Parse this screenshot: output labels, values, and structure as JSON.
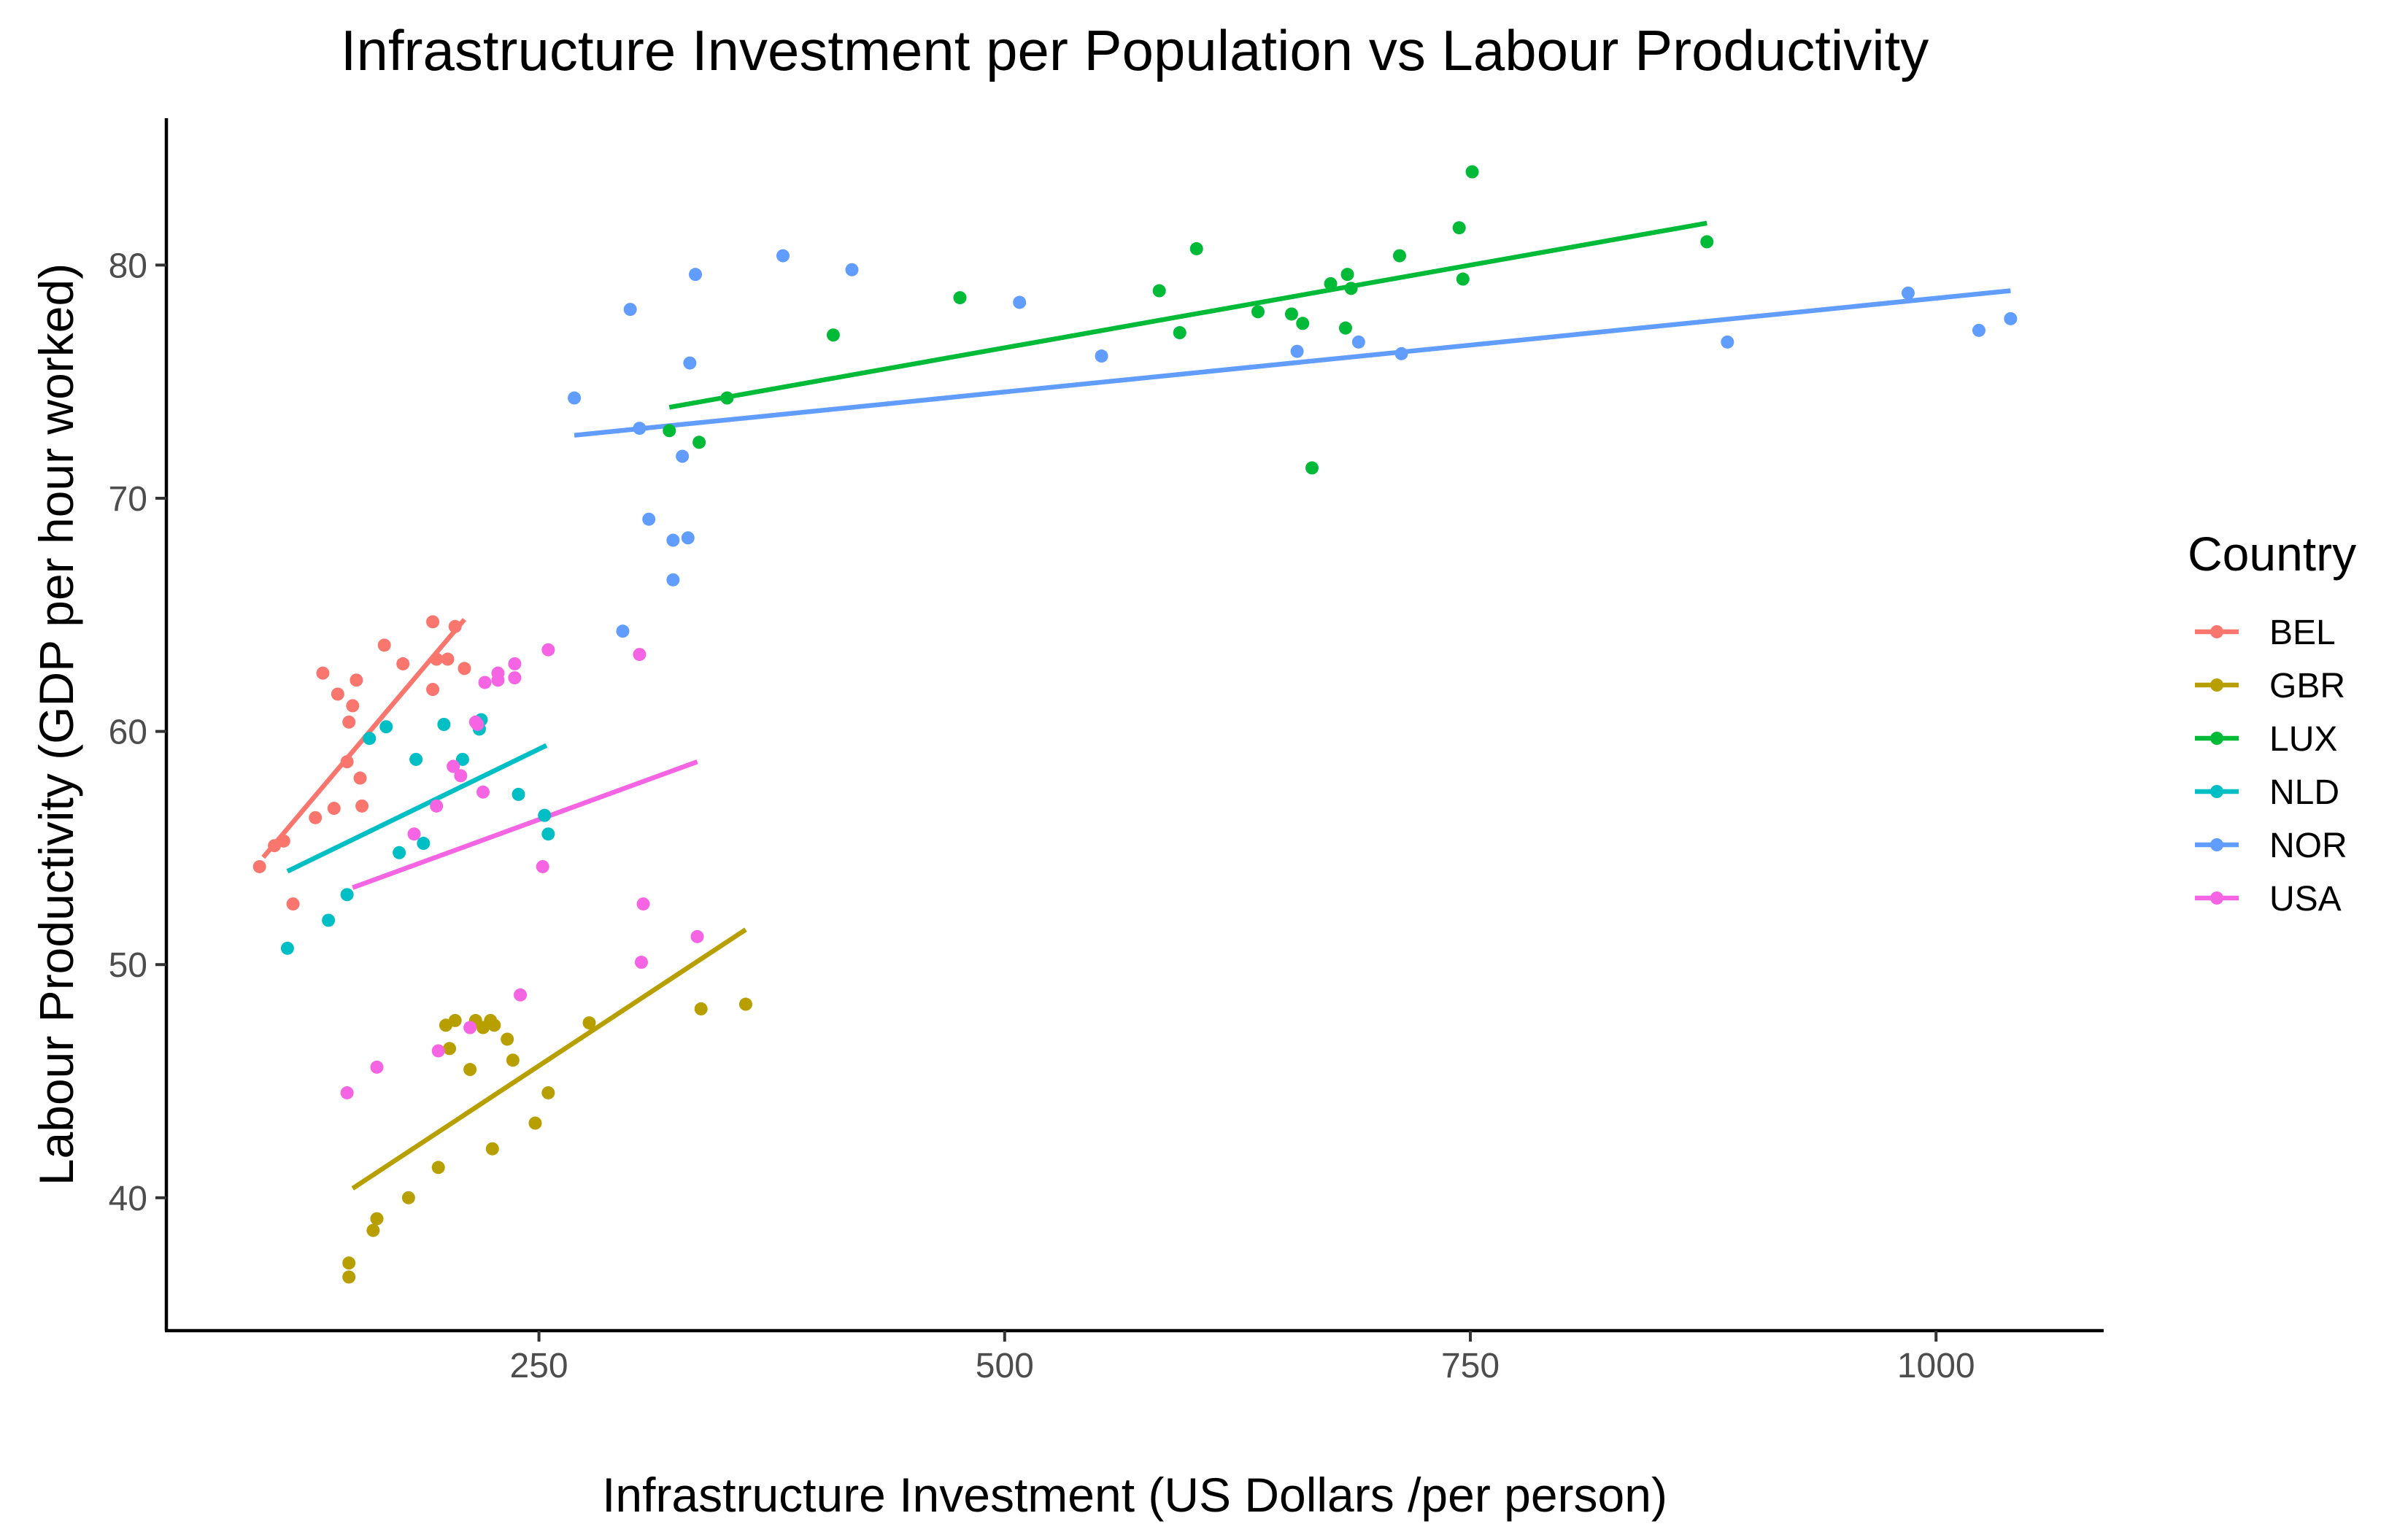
{
  "chart_data": {
    "type": "scatter",
    "title": "Infrastructure Investment per Population vs Labour Productivity",
    "xlabel": "Infrastructure Investment (US Dollars /per person)",
    "ylabel": "Labour Productivity (GDP per hour worked)",
    "xlim": [
      50,
      1090
    ],
    "ylim": [
      34.3,
      86.3
    ],
    "xticks": [
      250,
      500,
      750,
      1000
    ],
    "yticks": [
      40,
      50,
      60,
      70,
      80
    ],
    "grid": false,
    "legend": {
      "title": "Country",
      "placement": "right"
    },
    "series": [
      {
        "name": "BEL",
        "color": "#F8766D",
        "points": [
          [
            100,
            54.2
          ],
          [
            108,
            55.1
          ],
          [
            113,
            55.3
          ],
          [
            118,
            52.6
          ],
          [
            130,
            56.3
          ],
          [
            134,
            62.5
          ],
          [
            140,
            56.7
          ],
          [
            142,
            61.6
          ],
          [
            147,
            58.7
          ],
          [
            148,
            60.4
          ],
          [
            150,
            61.1
          ],
          [
            152,
            62.2
          ],
          [
            154,
            58.0
          ],
          [
            155,
            56.8
          ],
          [
            167,
            63.7
          ],
          [
            177,
            62.9
          ],
          [
            193,
            64.7
          ],
          [
            193,
            61.8
          ],
          [
            195,
            63.1
          ],
          [
            201,
            63.1
          ],
          [
            205,
            64.5
          ],
          [
            210,
            62.7
          ]
        ],
        "fit": [
          [
            102,
            54.6
          ],
          [
            210,
            64.8
          ]
        ]
      },
      {
        "name": "GBR",
        "color": "#B79F00",
        "points": [
          [
            148,
            37.2
          ],
          [
            148,
            36.6
          ],
          [
            161,
            38.6
          ],
          [
            163,
            39.1
          ],
          [
            180,
            40.0
          ],
          [
            196,
            41.3
          ],
          [
            200,
            47.4
          ],
          [
            202,
            46.4
          ],
          [
            205,
            47.6
          ],
          [
            213,
            45.5
          ],
          [
            216,
            47.6
          ],
          [
            220,
            47.3
          ],
          [
            224,
            47.6
          ],
          [
            225,
            42.1
          ],
          [
            226,
            47.4
          ],
          [
            233,
            46.8
          ],
          [
            236,
            45.9
          ],
          [
            248,
            43.2
          ],
          [
            255,
            44.5
          ],
          [
            277,
            47.5
          ],
          [
            337,
            48.1
          ],
          [
            361,
            48.3
          ]
        ],
        "fit": [
          [
            150,
            40.4
          ],
          [
            361,
            51.5
          ]
        ]
      },
      {
        "name": "LUX",
        "color": "#00BA38",
        "points": [
          [
            320,
            72.9
          ],
          [
            336,
            72.4
          ],
          [
            351,
            74.3
          ],
          [
            408,
            77.0
          ],
          [
            476,
            78.6
          ],
          [
            583,
            78.9
          ],
          [
            594,
            77.1
          ],
          [
            603,
            80.7
          ],
          [
            636,
            78.0
          ],
          [
            654,
            77.9
          ],
          [
            660,
            77.5
          ],
          [
            665,
            71.3
          ],
          [
            675,
            79.2
          ],
          [
            683,
            77.3
          ],
          [
            684,
            79.6
          ],
          [
            686,
            79.0
          ],
          [
            712,
            80.4
          ],
          [
            744,
            81.6
          ],
          [
            746,
            79.4
          ],
          [
            751,
            84.0
          ],
          [
            877,
            81.0
          ]
        ],
        "fit": [
          [
            320,
            73.9
          ],
          [
            877,
            81.8
          ]
        ]
      },
      {
        "name": "NLD",
        "color": "#00BFC4",
        "points": [
          [
            115,
            50.7
          ],
          [
            137,
            51.9
          ],
          [
            147,
            53.0
          ],
          [
            159,
            59.7
          ],
          [
            168,
            60.2
          ],
          [
            175,
            54.8
          ],
          [
            184,
            58.8
          ],
          [
            188,
            55.2
          ],
          [
            199,
            60.3
          ],
          [
            209,
            58.8
          ],
          [
            218,
            60.1
          ],
          [
            219,
            60.5
          ],
          [
            239,
            57.3
          ],
          [
            253,
            56.4
          ],
          [
            255,
            55.6
          ]
        ],
        "fit": [
          [
            115,
            54.0
          ],
          [
            254,
            59.4
          ]
        ]
      },
      {
        "name": "NOR",
        "color": "#619CFF",
        "points": [
          [
            269,
            74.3
          ],
          [
            295,
            64.3
          ],
          [
            299,
            78.1
          ],
          [
            304,
            73.0
          ],
          [
            309,
            69.1
          ],
          [
            322,
            66.5
          ],
          [
            322,
            68.2
          ],
          [
            327,
            71.8
          ],
          [
            330,
            68.3
          ],
          [
            331,
            75.8
          ],
          [
            334,
            79.6
          ],
          [
            381,
            80.4
          ],
          [
            418,
            79.8
          ],
          [
            508,
            78.4
          ],
          [
            552,
            76.1
          ],
          [
            657,
            76.3
          ],
          [
            690,
            76.7
          ],
          [
            713,
            76.2
          ],
          [
            888,
            76.7
          ],
          [
            985,
            78.8
          ],
          [
            1023,
            77.2
          ],
          [
            1040,
            77.7
          ]
        ],
        "fit": [
          [
            269,
            72.7
          ],
          [
            1040,
            78.9
          ]
        ]
      },
      {
        "name": "USA",
        "color": "#F564E3",
        "points": [
          [
            147,
            44.5
          ],
          [
            163,
            45.6
          ],
          [
            183,
            55.6
          ],
          [
            195,
            56.8
          ],
          [
            196,
            46.3
          ],
          [
            204,
            58.5
          ],
          [
            208,
            58.1
          ],
          [
            213,
            47.3
          ],
          [
            216,
            60.4
          ],
          [
            217,
            60.3
          ],
          [
            220,
            57.4
          ],
          [
            221,
            62.1
          ],
          [
            228,
            62.5
          ],
          [
            228,
            62.2
          ],
          [
            237,
            62.9
          ],
          [
            237,
            62.3
          ],
          [
            240,
            48.7
          ],
          [
            252,
            54.2
          ],
          [
            255,
            63.5
          ],
          [
            304,
            63.3
          ],
          [
            305,
            50.1
          ],
          [
            306,
            52.6
          ],
          [
            335,
            51.2
          ]
        ],
        "fit": [
          [
            150,
            53.3
          ],
          [
            335,
            58.7
          ]
        ]
      }
    ]
  }
}
